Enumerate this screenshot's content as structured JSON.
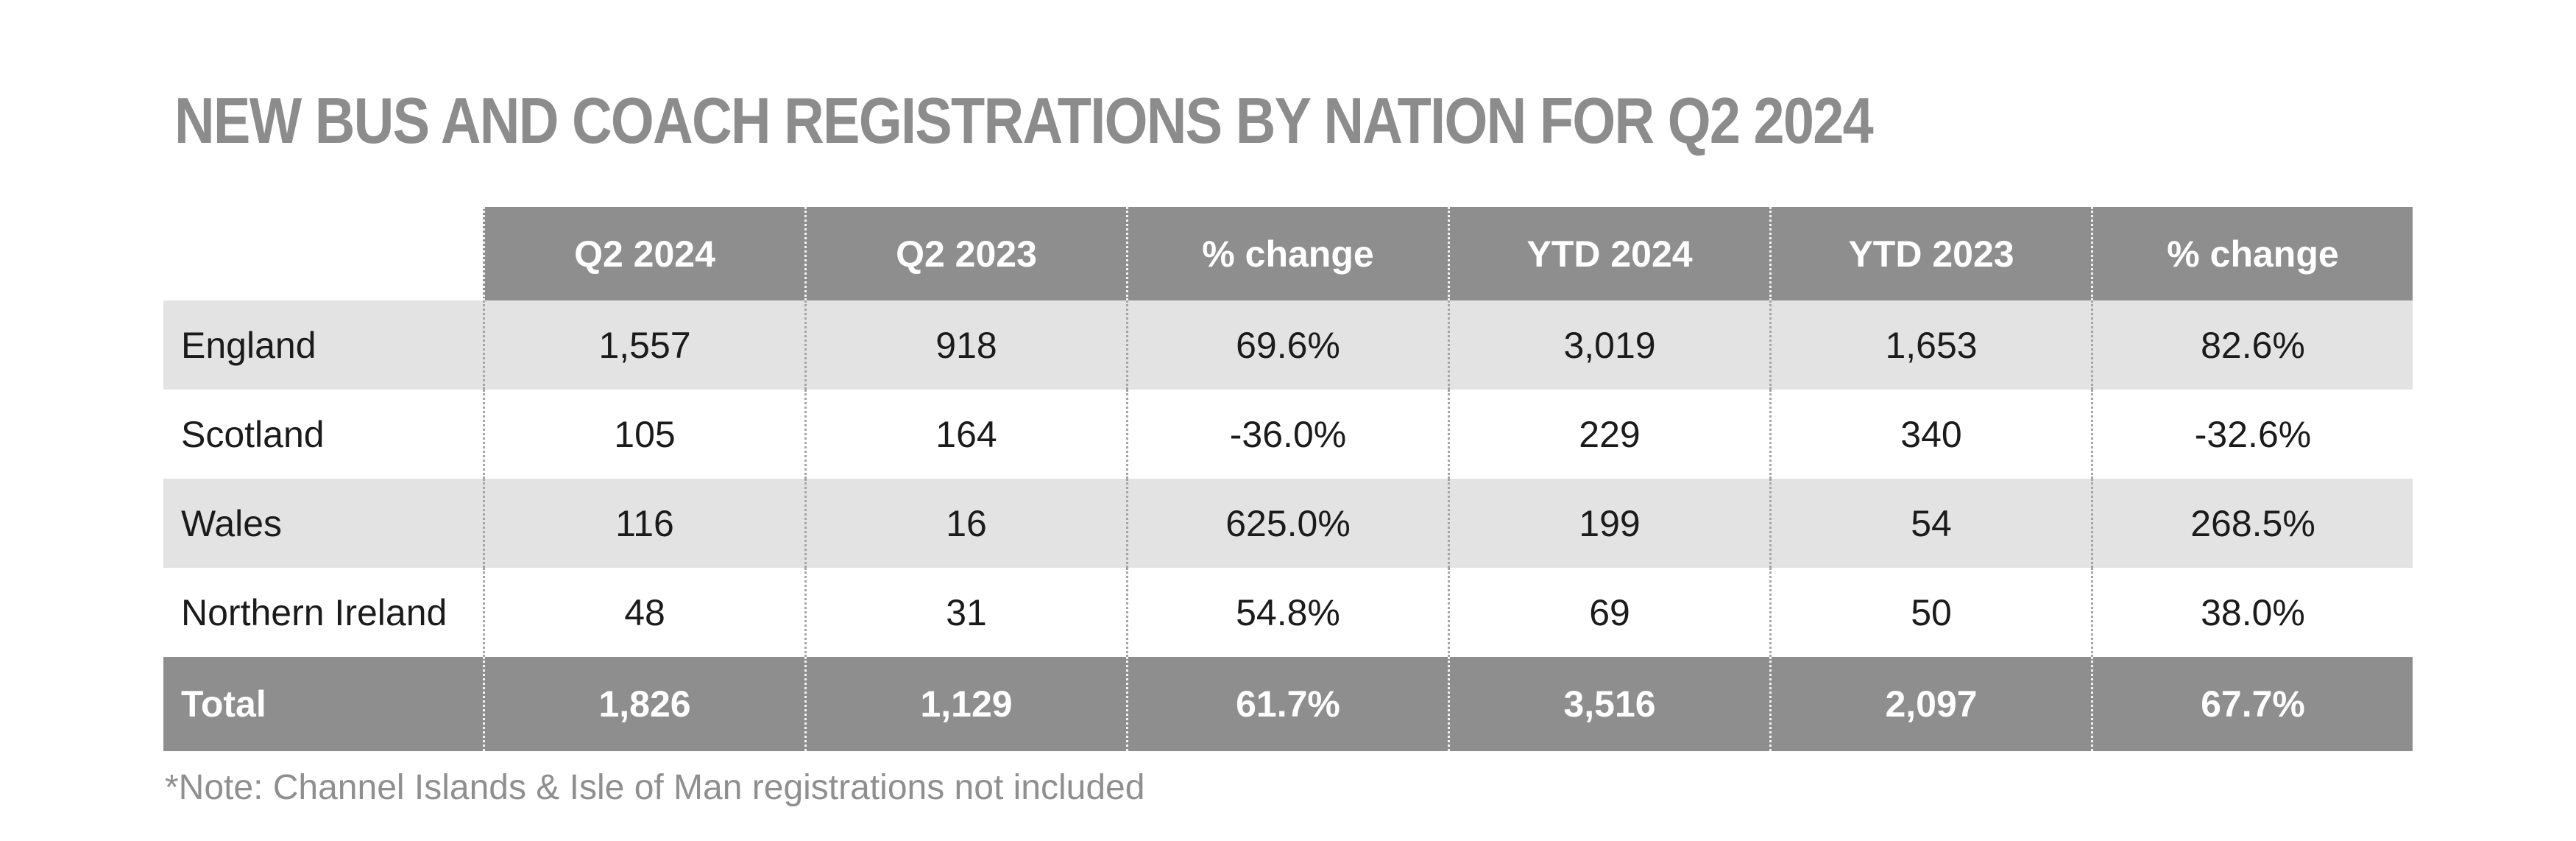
{
  "colors": {
    "header_bg": "#8e8e8e",
    "total_bg": "#8e8e8e",
    "alt_row_bg": "#e3e3e3",
    "title_text": "#8c8c8c",
    "note_text": "#8f8f8f",
    "body_text": "#1b1b1b",
    "header_text": "#ffffff"
  },
  "chart_data": {
    "type": "table",
    "title": "NEW BUS AND COACH REGISTRATIONS BY NATION FOR Q2 2024",
    "columns": [
      "",
      "Q2 2024",
      "Q2 2023",
      "% change",
      "YTD 2024",
      "YTD 2023",
      "% change"
    ],
    "rows": [
      {
        "label": "England",
        "values": [
          "1,557",
          "918",
          "69.6%",
          "3,019",
          "1,653",
          "82.6%"
        ]
      },
      {
        "label": "Scotland",
        "values": [
          "105",
          "164",
          "-36.0%",
          "229",
          "340",
          "-32.6%"
        ]
      },
      {
        "label": "Wales",
        "values": [
          "116",
          "16",
          "625.0%",
          "199",
          "54",
          "268.5%"
        ]
      },
      {
        "label": "Northern Ireland",
        "values": [
          "48",
          "31",
          "54.8%",
          "69",
          "50",
          "38.0%"
        ]
      },
      {
        "label": "Total",
        "values": [
          "1,826",
          "1,129",
          "61.7%",
          "3,516",
          "2,097",
          "67.7%"
        ]
      }
    ],
    "note": "*Note: Channel Islands & Isle of Man registrations not included",
    "layout": {
      "legend": "none",
      "grid": "dotted-vertical-separators",
      "total_row_highlighted": true
    }
  }
}
